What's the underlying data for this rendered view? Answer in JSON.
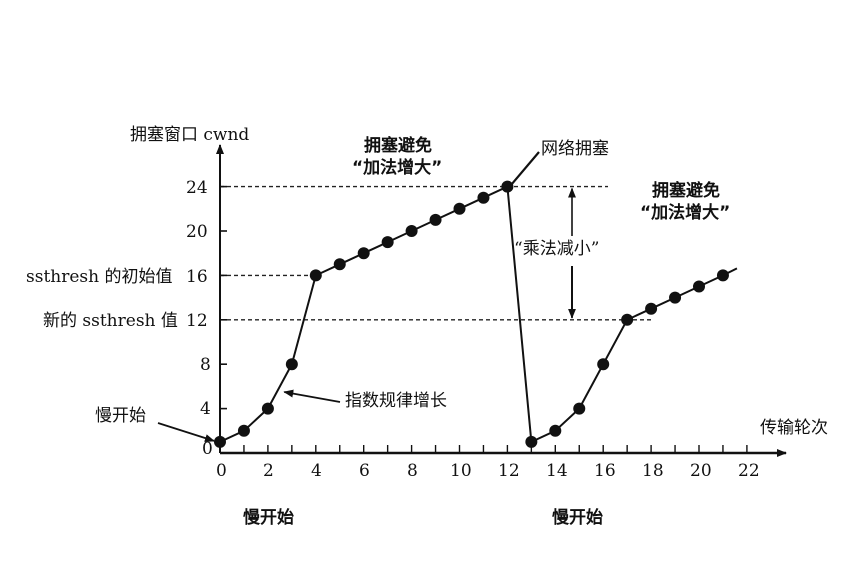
{
  "chart_data": {
    "type": "line",
    "title": "",
    "xlabel": "传输轮次",
    "ylabel": "拥塞窗口 cwnd",
    "xlim": [
      0,
      22
    ],
    "ylim": [
      0,
      24
    ],
    "x_ticks": [
      0,
      2,
      4,
      6,
      8,
      10,
      12,
      14,
      16,
      18,
      20,
      22
    ],
    "y_ticks": [
      0,
      4,
      8,
      12,
      16,
      20,
      24
    ],
    "grid": false,
    "series": [
      {
        "name": "cwnd",
        "x": [
          0,
          1,
          2,
          3,
          4,
          5,
          6,
          7,
          8,
          9,
          10,
          11,
          12,
          13,
          14,
          15,
          16,
          17,
          18,
          19,
          20,
          21
        ],
        "values": [
          1,
          2,
          4,
          8,
          16,
          17,
          18,
          19,
          20,
          21,
          22,
          23,
          24,
          1,
          2,
          4,
          8,
          12,
          13,
          14,
          15,
          16
        ]
      }
    ],
    "reference_lines": [
      {
        "y": 24,
        "style": "dashed"
      },
      {
        "y": 16,
        "style": "dashed",
        "label": "ssthresh 的初始值"
      },
      {
        "y": 12,
        "style": "dashed",
        "label": "新的 ssthresh 值"
      }
    ],
    "annotations": [
      {
        "text": "慢开始",
        "target": [
          0,
          1
        ]
      },
      {
        "text": "指数规律增长",
        "target": [
          2.6,
          5.5
        ]
      },
      {
        "text": "拥塞避免",
        "line2": "“加法增大”",
        "region": "x 4-12"
      },
      {
        "text": "网络拥塞",
        "target": [
          12,
          24
        ]
      },
      {
        "text": "“乘法减小”",
        "span": [
          12,
          24
        ]
      },
      {
        "text": "拥塞避免",
        "line2": "“加法增大”",
        "region": "x 17-21"
      },
      {
        "text": "慢开始",
        "region": "below x 0-4"
      },
      {
        "text": "慢开始",
        "region": "below x 13-17"
      }
    ],
    "legend": "none"
  },
  "labels": {
    "y_axis_title": "拥塞窗口 cwnd",
    "x_axis_title": "传输轮次",
    "ssthresh_initial": "ssthresh 的初始值",
    "ssthresh_new": "新的 ssthresh 值",
    "slow_start_left": "慢开始",
    "exponential_growth": "指数规律增长",
    "congestion_avoidance_1_line1": "拥塞避免",
    "congestion_avoidance_1_line2": "“加法增大”",
    "network_congestion": "网络拥塞",
    "multiplicative_decrease": "“乘法减小”",
    "congestion_avoidance_2_line1": "拥塞避免",
    "congestion_avoidance_2_line2": "“加法增大”",
    "slow_start_bottom_1": "慢开始",
    "slow_start_bottom_2": "慢开始"
  },
  "axis": {
    "y_ticks": [
      "24",
      "20",
      "16",
      "12",
      "8",
      "4",
      "0"
    ],
    "x_ticks": [
      "0",
      "2",
      "4",
      "6",
      "8",
      "10",
      "12",
      "14",
      "16",
      "18",
      "20",
      "22"
    ]
  }
}
